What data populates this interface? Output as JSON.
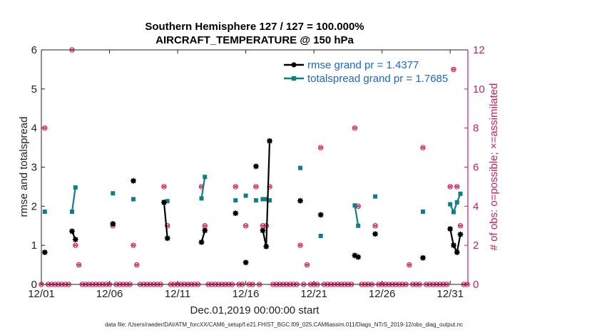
{
  "colors": {
    "rmse": "#000000",
    "spread": "#0f7f86",
    "obs": "#d61a5c",
    "legend_text": "#1a66d6",
    "axis": "#222222"
  },
  "chart_data": {
    "type": "line",
    "title_line1": "Southern Hemisphere 127 / 127 = 100.000%",
    "title_line2": "AIRCRAFT_TEMPERATURE @ 150 hPa",
    "xlabel": "Dec.01,2019 00:00:00 start",
    "ylabel_left": "rmse and totalspread",
    "ylabel_right": "# of obs: o=possible; ×=assimilated",
    "footer": "data file: /Users/raeder/DAI/ATM_forcXX/CAM6_setup/f.e21.FHIST_BGC.f09_025.CAM6assim.011/Diags_NTrS_2019-12/obs_diag_output.nc",
    "xlim": [
      1,
      32.3
    ],
    "ylim_left": [
      0,
      6
    ],
    "ylim_right": [
      0,
      12
    ],
    "xticks": [
      {
        "v": 1,
        "label": "12/01"
      },
      {
        "v": 6,
        "label": "12/06"
      },
      {
        "v": 11,
        "label": "12/11"
      },
      {
        "v": 16,
        "label": "12/16"
      },
      {
        "v": 21,
        "label": "12/21"
      },
      {
        "v": 26,
        "label": "12/26"
      },
      {
        "v": 31,
        "label": "12/31"
      }
    ],
    "yticks_left": [
      "0",
      "1",
      "2",
      "3",
      "4",
      "5",
      "6"
    ],
    "yticks_right": [
      "0",
      "2",
      "4",
      "6",
      "8",
      "10",
      "12"
    ],
    "series": [
      {
        "name": "rmse",
        "legend": "rmse grand pr = 1.4377",
        "segments": [
          [
            [
              1.25,
              0.82
            ]
          ],
          [
            [
              3.25,
              1.36
            ],
            [
              3.5,
              1.15
            ]
          ],
          [
            [
              6.25,
              1.55
            ]
          ],
          [
            [
              7.75,
              2.65
            ]
          ],
          [
            [
              10,
              2.1
            ],
            [
              10.25,
              1.18
            ]
          ],
          [
            [
              12.75,
              1.08
            ],
            [
              13,
              1.38
            ]
          ],
          [
            [
              15.25,
              1.82
            ]
          ],
          [
            [
              16,
              0.56
            ]
          ],
          [
            [
              16.75,
              3.02
            ]
          ],
          [
            [
              17.25,
              1.38
            ],
            [
              17.5,
              0.97
            ],
            [
              17.75,
              3.67
            ]
          ],
          [
            [
              20,
              2.14
            ]
          ],
          [
            [
              21.5,
              1.78
            ]
          ],
          [
            [
              24,
              0.74
            ],
            [
              24.25,
              0.7
            ]
          ],
          [
            [
              25.5,
              1.29
            ]
          ],
          [
            [
              29,
              0.68
            ]
          ],
          [
            [
              31,
              1.42
            ],
            [
              31.25,
              1.0
            ],
            [
              31.5,
              0.82
            ],
            [
              31.75,
              1.28
            ]
          ]
        ]
      },
      {
        "name": "totalspread",
        "legend": "totalspread grand pr = 1.7685",
        "segments": [
          [
            [
              1.25,
              1.86
            ]
          ],
          [
            [
              3.25,
              1.86
            ],
            [
              3.5,
              2.48
            ]
          ],
          [
            [
              6.25,
              2.33
            ]
          ],
          [
            [
              7.75,
              2.18
            ]
          ],
          [
            [
              10,
              2.1
            ],
            [
              10.25,
              2.13
            ]
          ],
          [
            [
              12.75,
              2.2
            ],
            [
              13,
              2.75
            ]
          ],
          [
            [
              15.25,
              2.15
            ]
          ],
          [
            [
              16,
              2.27
            ]
          ],
          [
            [
              16.75,
              2.15
            ]
          ],
          [
            [
              17.25,
              2.18
            ],
            [
              17.5,
              2.18
            ],
            [
              17.75,
              2.15
            ]
          ],
          [
            [
              20,
              2.98
            ]
          ],
          [
            [
              21.5,
              1.24
            ]
          ],
          [
            [
              24,
              2.02
            ],
            [
              24.25,
              1.5
            ]
          ],
          [
            [
              25.5,
              2.25
            ]
          ],
          [
            [
              29,
              1.86
            ]
          ],
          [
            [
              31,
              2.05
            ],
            [
              31.25,
              1.85
            ],
            [
              31.5,
              2.1
            ],
            [
              31.75,
              2.32
            ]
          ]
        ]
      }
    ],
    "obs_count_nonzero": [
      {
        "x": 1.25,
        "n": 8
      },
      {
        "x": 3.25,
        "n": 12
      },
      {
        "x": 3.5,
        "n": 2
      },
      {
        "x": 3.75,
        "n": 1
      },
      {
        "x": 6.25,
        "n": 3
      },
      {
        "x": 7.75,
        "n": 2
      },
      {
        "x": 8.0,
        "n": 1
      },
      {
        "x": 10.0,
        "n": 5
      },
      {
        "x": 10.25,
        "n": 3
      },
      {
        "x": 12.75,
        "n": 5
      },
      {
        "x": 13.0,
        "n": 3
      },
      {
        "x": 15.25,
        "n": 5
      },
      {
        "x": 16.0,
        "n": 3
      },
      {
        "x": 16.75,
        "n": 5
      },
      {
        "x": 17.25,
        "n": 3
      },
      {
        "x": 17.5,
        "n": 3
      },
      {
        "x": 17.75,
        "n": 5
      },
      {
        "x": 20.0,
        "n": 2
      },
      {
        "x": 20.5,
        "n": 1
      },
      {
        "x": 21.5,
        "n": 7
      },
      {
        "x": 24.0,
        "n": 8
      },
      {
        "x": 24.25,
        "n": 4
      },
      {
        "x": 25.5,
        "n": 3
      },
      {
        "x": 28.0,
        "n": 1
      },
      {
        "x": 29.0,
        "n": 7
      },
      {
        "x": 31.0,
        "n": 5
      },
      {
        "x": 31.25,
        "n": 11
      },
      {
        "x": 31.5,
        "n": 5
      },
      {
        "x": 31.75,
        "n": 3
      }
    ]
  }
}
